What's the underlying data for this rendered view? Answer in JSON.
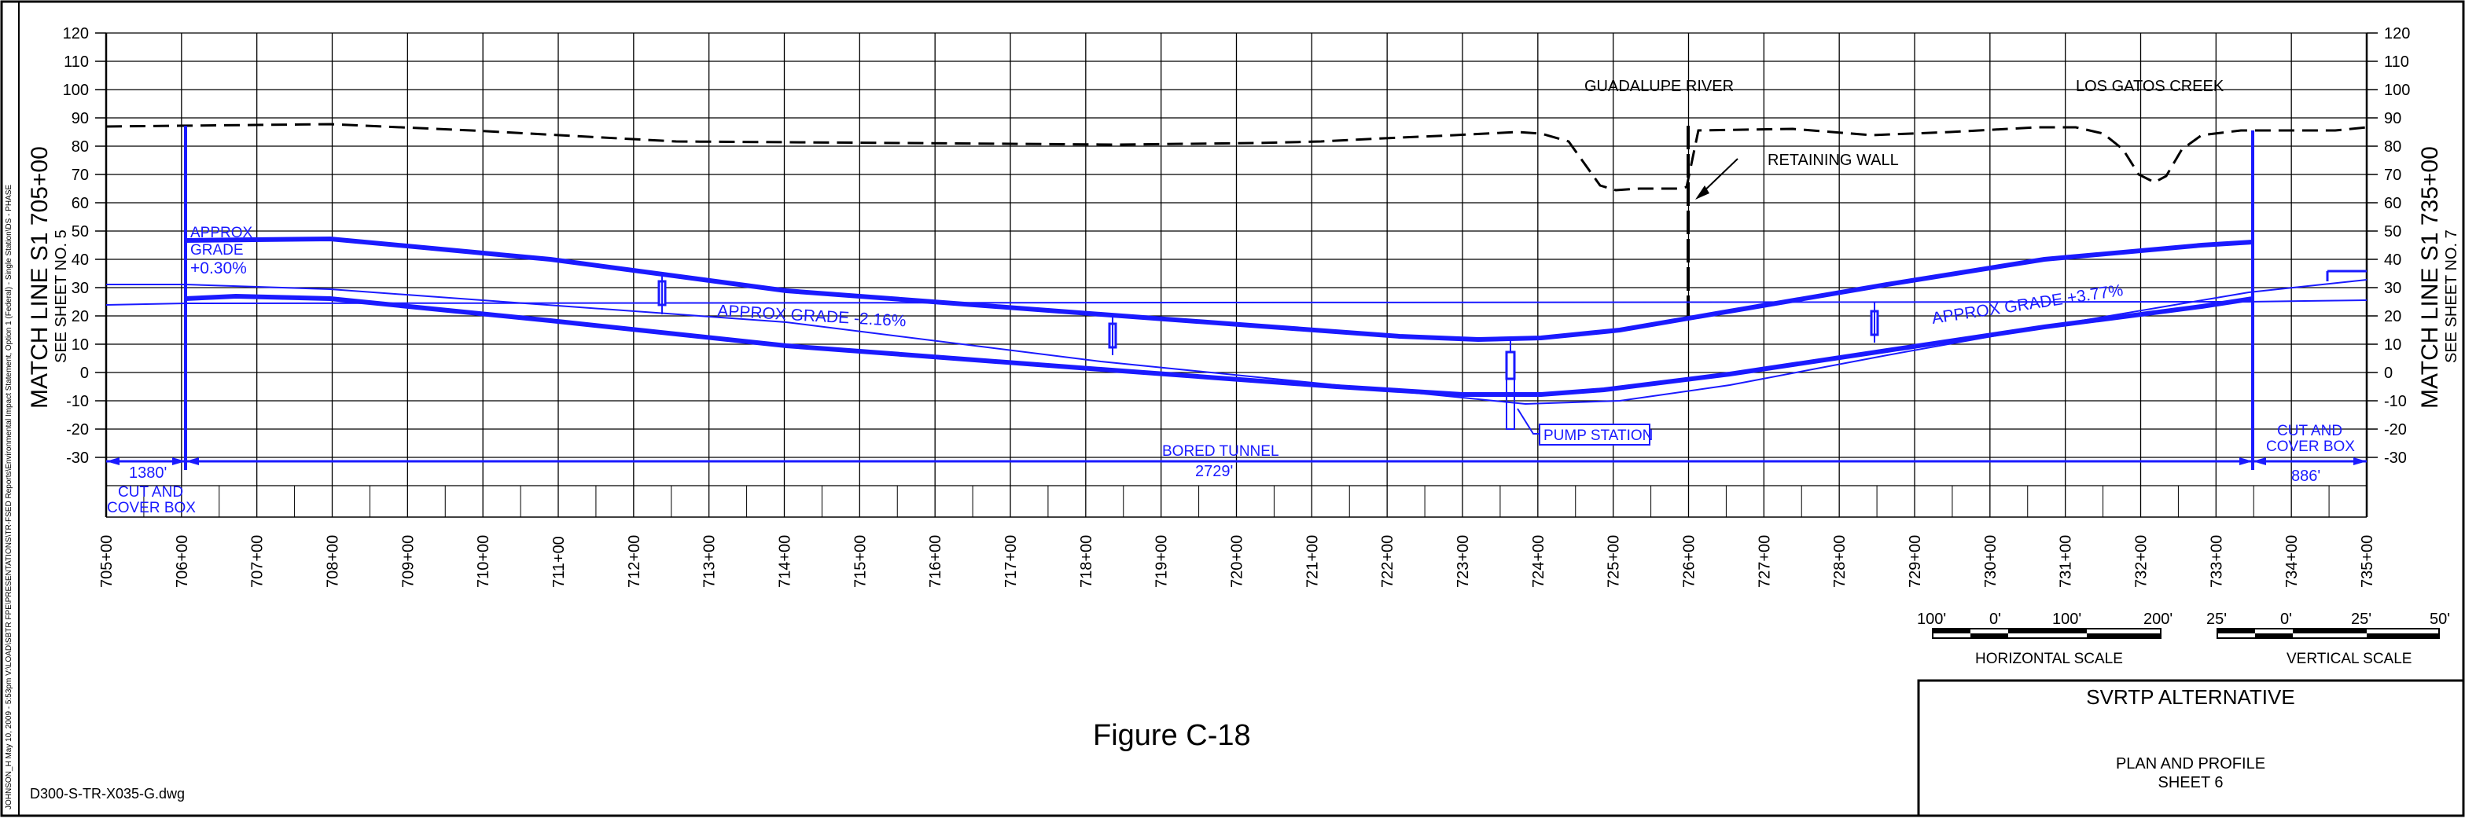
{
  "figure": {
    "caption": "Figure C-18",
    "filename": "D300-S-TR-X035-G.dwg",
    "side_stamp": "JOHNSON_H   May 10, 2009 - 5:53pm   V:\\LOAD\\SBTR FPE\\PRESENTATIONS\\TR-FSED Reports\\Environmental Impact Statement, Option 1 (Federal) - Single Station\\DS - PHASE"
  },
  "match_lines": {
    "left": {
      "title": "MATCH LINE S1 705+00",
      "sub": "SEE SHEET NO. 5"
    },
    "right": {
      "title": "MATCH LINE S1 735+00",
      "sub": "SEE SHEET NO. 7"
    }
  },
  "profile": {
    "elev_ticks": [
      "120",
      "110",
      "100",
      "90",
      "80",
      "70",
      "60",
      "50",
      "40",
      "30",
      "20",
      "10",
      "0",
      "-10",
      "-20",
      "-30"
    ],
    "stations": [
      "705+00",
      "706+00",
      "707+00",
      "708+00",
      "709+00",
      "710+00",
      "711+00",
      "712+00",
      "713+00",
      "714+00",
      "715+00",
      "716+00",
      "717+00",
      "718+00",
      "719+00",
      "720+00",
      "721+00",
      "722+00",
      "723+00",
      "724+00",
      "725+00",
      "726+00",
      "727+00",
      "728+00",
      "729+00",
      "730+00",
      "731+00",
      "732+00",
      "733+00",
      "734+00",
      "735+00"
    ],
    "features": {
      "guadalupe": "GUADALUPE RIVER",
      "los_gatos": "LOS GATOS CREEK",
      "retaining_wall": "RETAINING WALL",
      "pump_station": "PUMP STATION"
    },
    "grades": {
      "g1_l1": "APPROX",
      "g1_l2": "GRADE",
      "g1_l3": "+0.30%",
      "g2": "APPROX GRADE -2.16%",
      "g3": "APPROX GRADE +3.77%"
    },
    "segments": {
      "left_len": "1380'",
      "left_l1": "CUT AND",
      "left_l2": "COVER BOX",
      "mid_name": "BORED TUNNEL",
      "mid_len": "2729'",
      "right_l1": "CUT AND",
      "right_l2": "COVER BOX",
      "right_len": "886'"
    },
    "colors": {
      "alignment": "#1a1aff",
      "grid": "#000000"
    }
  },
  "scales": {
    "horizontal": {
      "labels": [
        "100'",
        "0'",
        "100'",
        "200'"
      ],
      "title": "HORIZONTAL SCALE"
    },
    "vertical": {
      "labels": [
        "25'",
        "0'",
        "25'",
        "50'"
      ],
      "title": "VERTICAL SCALE"
    }
  },
  "title_block": {
    "title": "SVRTP ALTERNATIVE",
    "line1": "PLAN AND PROFILE",
    "line2": "SHEET 6"
  }
}
